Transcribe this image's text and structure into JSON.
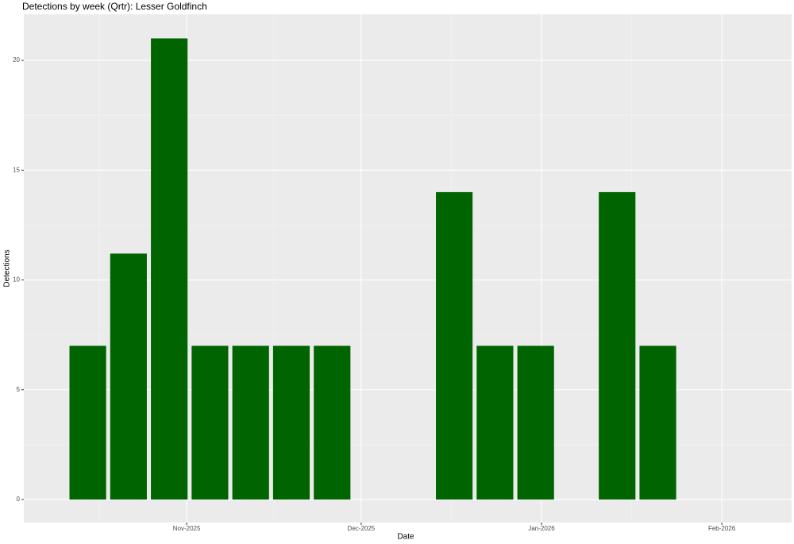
{
  "chart_data": {
    "type": "bar",
    "title": "Detections by week (Qrtr): Lesser Goldfinch",
    "x_label": "Date",
    "y_label": "Detections",
    "x": [
      "2025-10-15",
      "2025-10-22",
      "2025-10-29",
      "2025-11-05",
      "2025-11-12",
      "2025-11-19",
      "2025-11-26",
      "2025-12-17",
      "2025-12-24",
      "2025-12-31",
      "2026-01-14",
      "2026-01-21"
    ],
    "values": [
      7,
      11.2,
      21,
      7,
      7,
      7,
      7,
      14,
      7,
      7,
      14,
      7
    ],
    "color": "#006400",
    "xlim": [
      "2025-10-04",
      "2026-02-13"
    ],
    "xticks": [
      {
        "value": "2025-11-01",
        "label": "Nov-2025"
      },
      {
        "value": "2025-12-01",
        "label": "Dec-2025"
      },
      {
        "value": "2026-01-01",
        "label": "Jan-2026"
      },
      {
        "value": "2026-02-01",
        "label": "Feb-2026"
      }
    ],
    "ylim": [
      -1.05,
      22.1
    ],
    "yticks": [
      0,
      5,
      10,
      15,
      20
    ],
    "grid": true
  }
}
